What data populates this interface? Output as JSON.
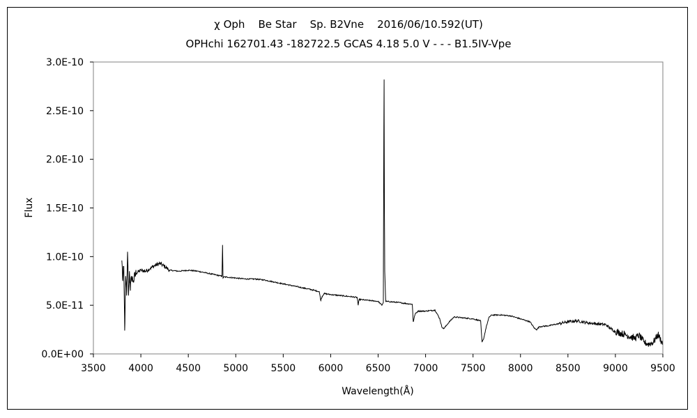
{
  "chart_data": {
    "type": "line",
    "title": "χ Oph    Be Star    Sp. B2Vne    2016/06/10.592(UT)",
    "subtitle": "OPHchi 162701.43 -182722.5 GCAS 4.18 5.0 V - - - B1.5IV-Vpe",
    "xlabel": "Wavelength(Å)",
    "ylabel": "Flux",
    "xlim": [
      3500,
      9500
    ],
    "ylim": [
      0,
      3e-10
    ],
    "x_ticks": [
      3500,
      4000,
      4500,
      5000,
      5500,
      6000,
      6500,
      7000,
      7500,
      8000,
      8500,
      9000,
      9500
    ],
    "x_tick_labels": [
      "3500",
      "4000",
      "4500",
      "5000",
      "5500",
      "6000",
      "6500",
      "7000",
      "7500",
      "8000",
      "8500",
      "9000",
      "9500"
    ],
    "y_ticks": [
      0,
      5e-11,
      1e-10,
      1.5e-10,
      2e-10,
      2.5e-10,
      3e-10
    ],
    "y_tick_labels": [
      "0.0E+00",
      "5.0E-11",
      "1.0E-10",
      "1.5E-10",
      "2.0E-10",
      "2.5E-10",
      "3.0E-10"
    ],
    "grid": false,
    "line_color": "#000000",
    "series": [
      {
        "wavelength": [
          3800,
          3810,
          3820,
          3830,
          3840,
          3850,
          3860,
          3870,
          3880,
          3890,
          3900,
          3920,
          3950,
          4000,
          4050,
          4100,
          4150,
          4200,
          4250,
          4300,
          4400,
          4500,
          4600,
          4700,
          4800,
          4850,
          4855,
          4861,
          4866,
          4870,
          4900,
          5000,
          5100,
          5200,
          5300,
          5400,
          5500,
          5600,
          5700,
          5800,
          5880,
          5895,
          5910,
          5930,
          6000,
          6100,
          6200,
          6280,
          6290,
          6300,
          6400,
          6500,
          6540,
          6555,
          6560,
          6563,
          6566,
          6570,
          6580,
          6700,
          6860,
          6870,
          6890,
          6920,
          7000,
          7100,
          7150,
          7170,
          7190,
          7210,
          7250,
          7300,
          7400,
          7500,
          7580,
          7595,
          7610,
          7640,
          7670,
          7700,
          7800,
          7900,
          8000,
          8100,
          8150,
          8170,
          8200,
          8300,
          8400,
          8500,
          8600,
          8700,
          8800,
          8900,
          8950,
          9000,
          9100,
          9200,
          9250,
          9300,
          9350,
          9400,
          9450,
          9500
        ],
        "flux": [
          9.6e-11,
          7.5e-11,
          9e-11,
          2.4e-11,
          8e-11,
          6e-11,
          1.05e-10,
          6e-11,
          8.5e-11,
          6.5e-11,
          8e-11,
          7.5e-11,
          8.3e-11,
          8.6e-11,
          8.5e-11,
          8.8e-11,
          9.1e-11,
          9.3e-11,
          9e-11,
          8.6e-11,
          8.5e-11,
          8.6e-11,
          8.5e-11,
          8.3e-11,
          8.1e-11,
          8e-11,
          8e-11,
          1.12e-10,
          7.8e-11,
          7.9e-11,
          7.9e-11,
          7.8e-11,
          7.7e-11,
          7.7e-11,
          7.6e-11,
          7.4e-11,
          7.2e-11,
          7e-11,
          6.8e-11,
          6.6e-11,
          6.4e-11,
          5.5e-11,
          5.9e-11,
          6.2e-11,
          6.1e-11,
          6e-11,
          5.9e-11,
          5.8e-11,
          5e-11,
          5.6e-11,
          5.5e-11,
          5.4e-11,
          5e-11,
          5.3e-11,
          2.28e-10,
          2.82e-10,
          1.5e-10,
          8.5e-11,
          5.4e-11,
          5.3e-11,
          5.1e-11,
          3.3e-11,
          4.1e-11,
          4.4e-11,
          4.4e-11,
          4.5e-11,
          3.6e-11,
          2.8e-11,
          2.6e-11,
          2.8e-11,
          3.3e-11,
          3.8e-11,
          3.7e-11,
          3.6e-11,
          3.4e-11,
          1.2e-11,
          1.5e-11,
          2.8e-11,
          3.8e-11,
          4e-11,
          4e-11,
          3.9e-11,
          3.6e-11,
          3.3e-11,
          2.6e-11,
          2.5e-11,
          2.8e-11,
          2.9e-11,
          3.1e-11,
          3.3e-11,
          3.4e-11,
          3.2e-11,
          3.1e-11,
          3e-11,
          2.6e-11,
          2.3e-11,
          2e-11,
          1.6e-11,
          1.9e-11,
          1.2e-11,
          1e-11,
          1.2e-11,
          2e-11,
          1e-11
        ]
      }
    ]
  }
}
